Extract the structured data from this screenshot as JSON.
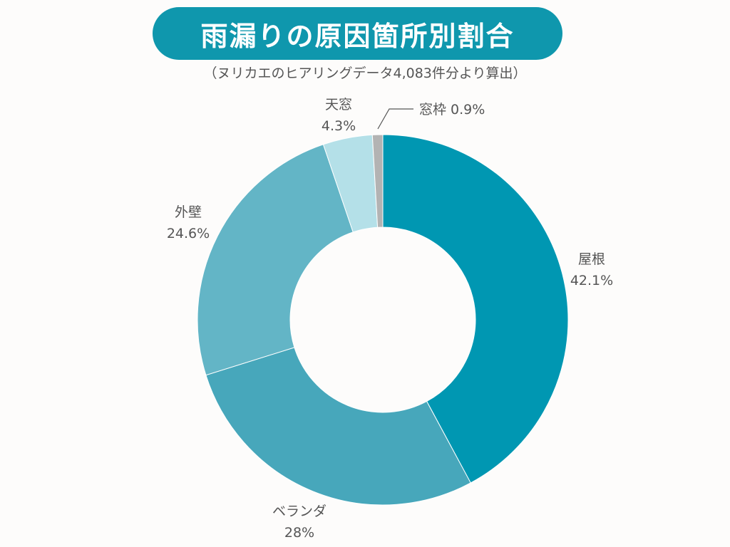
{
  "title": "雨漏りの原因箇所別割合",
  "subtitle": "（ヌリカエのヒアリングデータ4,083件分より算出）",
  "chart_data": {
    "type": "pie",
    "donut": true,
    "title": "雨漏りの原因箇所別割合",
    "subtitle": "（ヌリカエのヒアリングデータ4,083件分より算出）",
    "slices": [
      {
        "label": "屋根",
        "value": 42.1,
        "value_label": "42.1%",
        "color": "#0097b2"
      },
      {
        "label": "ベランダ",
        "value": 28,
        "value_label": "28%",
        "color": "#47a7bb"
      },
      {
        "label": "外壁",
        "value": 24.6,
        "value_label": "24.6%",
        "color": "#63b5c6"
      },
      {
        "label": "天窓",
        "value": 4.3,
        "value_label": "4.3%",
        "color": "#b4e0e8"
      },
      {
        "label": "窓枠",
        "value": 0.9,
        "value_label": "0.9%",
        "color": "#b3b3b3"
      }
    ],
    "legend": "none"
  }
}
